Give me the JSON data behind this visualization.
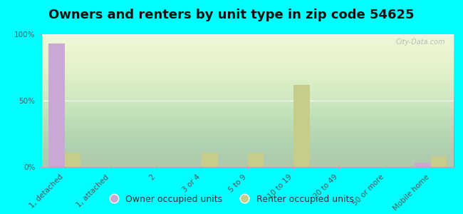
{
  "title": "Owners and renters by unit type in zip code 54625",
  "categories": [
    "1, detached",
    "1, attached",
    "2",
    "3 or 4",
    "5 to 9",
    "10 to 19",
    "20 to 49",
    "50 or more",
    "Mobile home"
  ],
  "owner_values": [
    93,
    0,
    0,
    0,
    0,
    0,
    0,
    0,
    3
  ],
  "renter_values": [
    11,
    0,
    0,
    11,
    11,
    62,
    0,
    0,
    8
  ],
  "owner_color": "#c9a9d4",
  "renter_color": "#c8cc8a",
  "plot_bg_top": "#f5faf0",
  "plot_bg_bottom": "#d8eebc",
  "outer_background": "#00ffff",
  "ylim": [
    0,
    100
  ],
  "yticks": [
    0,
    50,
    100
  ],
  "ytick_labels": [
    "0%",
    "50%",
    "100%"
  ],
  "bar_width": 0.35,
  "legend_owner": "Owner occupied units",
  "legend_renter": "Renter occupied units",
  "watermark": "City-Data.com",
  "title_fontsize": 13,
  "tick_fontsize": 7.5,
  "legend_fontsize": 9
}
